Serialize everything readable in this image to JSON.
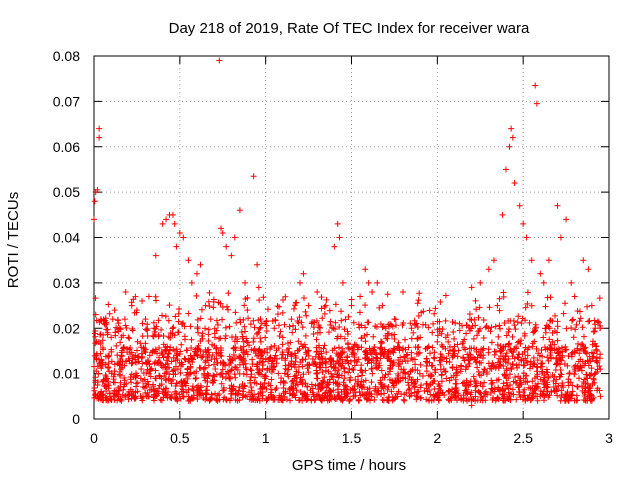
{
  "chart_data": {
    "type": "scatter",
    "title": "Day 218 of 2019, Rate Of TEC Index for receiver wara",
    "xlabel": "GPS time / hours",
    "ylabel": "ROTI / TECUs",
    "xlim": [
      0,
      3
    ],
    "ylim": [
      0,
      0.08
    ],
    "x_ticks": [
      0,
      0.5,
      1,
      1.5,
      2,
      2.5,
      3
    ],
    "x_tick_labels": [
      "0",
      "0.5",
      "1",
      "1.5",
      "2",
      "2.5",
      "3"
    ],
    "y_ticks": [
      0,
      0.01,
      0.02,
      0.03,
      0.04,
      0.05,
      0.06,
      0.07,
      0.08
    ],
    "y_tick_labels": [
      "0",
      "0.01",
      "0.02",
      "0.03",
      "0.04",
      "0.05",
      "0.06",
      "0.07",
      "0.08"
    ],
    "grid": true,
    "marker": "+",
    "marker_color": "#ff0000",
    "series": [
      {
        "name": "ROTI",
        "points": [
          [
            0.0,
            0.044
          ],
          [
            0.005,
            0.048
          ],
          [
            0.01,
            0.05
          ],
          [
            0.02,
            0.0505
          ],
          [
            0.03,
            0.062
          ],
          [
            0.03,
            0.064
          ],
          [
            0.01,
            0.023
          ],
          [
            0.04,
            0.022
          ],
          [
            0.06,
            0.021
          ],
          [
            0.08,
            0.019
          ],
          [
            0.1,
            0.018
          ],
          [
            0.12,
            0.024
          ],
          [
            0.15,
            0.02
          ],
          [
            0.18,
            0.022
          ],
          [
            0.2,
            0.018
          ],
          [
            0.22,
            0.025
          ],
          [
            0.25,
            0.024
          ],
          [
            0.28,
            0.026
          ],
          [
            0.3,
            0.022
          ],
          [
            0.32,
            0.027
          ],
          [
            0.35,
            0.02
          ],
          [
            0.36,
            0.036
          ],
          [
            0.4,
            0.043
          ],
          [
            0.42,
            0.044
          ],
          [
            0.44,
            0.045
          ],
          [
            0.46,
            0.045
          ],
          [
            0.47,
            0.043
          ],
          [
            0.48,
            0.038
          ],
          [
            0.5,
            0.041
          ],
          [
            0.52,
            0.04
          ],
          [
            0.55,
            0.035
          ],
          [
            0.57,
            0.03
          ],
          [
            0.6,
            0.032
          ],
          [
            0.62,
            0.034
          ],
          [
            0.65,
            0.025
          ],
          [
            0.68,
            0.022
          ],
          [
            0.73,
            0.079
          ],
          [
            0.74,
            0.042
          ],
          [
            0.75,
            0.041
          ],
          [
            0.77,
            0.038
          ],
          [
            0.8,
            0.036
          ],
          [
            0.82,
            0.04
          ],
          [
            0.85,
            0.046
          ],
          [
            0.88,
            0.03
          ],
          [
            0.93,
            0.0535
          ],
          [
            0.95,
            0.034
          ],
          [
            0.96,
            0.029
          ],
          [
            0.97,
            0.022
          ],
          [
            1.05,
            0.02
          ],
          [
            1.1,
            0.018
          ],
          [
            1.15,
            0.022
          ],
          [
            1.2,
            0.03
          ],
          [
            1.22,
            0.032
          ],
          [
            1.25,
            0.025
          ],
          [
            1.3,
            0.028
          ],
          [
            1.35,
            0.025
          ],
          [
            1.4,
            0.038
          ],
          [
            1.42,
            0.043
          ],
          [
            1.43,
            0.04
          ],
          [
            1.45,
            0.03
          ],
          [
            1.5,
            0.025
          ],
          [
            1.55,
            0.027
          ],
          [
            1.58,
            0.033
          ],
          [
            1.6,
            0.03
          ],
          [
            1.62,
            0.028
          ],
          [
            1.65,
            0.03
          ],
          [
            1.68,
            0.025
          ],
          [
            1.7,
            0.02
          ],
          [
            1.75,
            0.022
          ],
          [
            1.8,
            0.028
          ],
          [
            1.85,
            0.02
          ],
          [
            1.9,
            0.018
          ],
          [
            1.95,
            0.016
          ],
          [
            2.0,
            0.017
          ],
          [
            2.05,
            0.018
          ],
          [
            2.1,
            0.016
          ],
          [
            2.15,
            0.017
          ],
          [
            2.2,
            0.003
          ],
          [
            2.22,
            0.004
          ],
          [
            2.2,
            0.029
          ],
          [
            2.25,
            0.03
          ],
          [
            2.3,
            0.033
          ],
          [
            2.33,
            0.035
          ],
          [
            2.35,
            0.025
          ],
          [
            2.38,
            0.045
          ],
          [
            2.4,
            0.055
          ],
          [
            2.42,
            0.06
          ],
          [
            2.43,
            0.064
          ],
          [
            2.44,
            0.062
          ],
          [
            2.45,
            0.052
          ],
          [
            2.48,
            0.047
          ],
          [
            2.5,
            0.043
          ],
          [
            2.52,
            0.04
          ],
          [
            2.55,
            0.035
          ],
          [
            2.57,
            0.0735
          ],
          [
            2.58,
            0.0695
          ],
          [
            2.6,
            0.032
          ],
          [
            2.62,
            0.03
          ],
          [
            2.65,
            0.035
          ],
          [
            2.7,
            0.047
          ],
          [
            2.72,
            0.04
          ],
          [
            2.75,
            0.044
          ],
          [
            2.78,
            0.03
          ],
          [
            2.8,
            0.027
          ],
          [
            2.85,
            0.035
          ],
          [
            2.88,
            0.033
          ],
          [
            2.9,
            0.025
          ],
          [
            2.92,
            0.02
          ],
          [
            2.93,
            0.015
          ],
          [
            2.95,
            0.005
          ]
        ]
      }
    ],
    "dense_band": {
      "x_range": [
        0,
        2.95
      ],
      "y_min": 0.003,
      "y_max": 0.02,
      "note": "dense cloud of low ROTI values across the whole time range"
    }
  }
}
